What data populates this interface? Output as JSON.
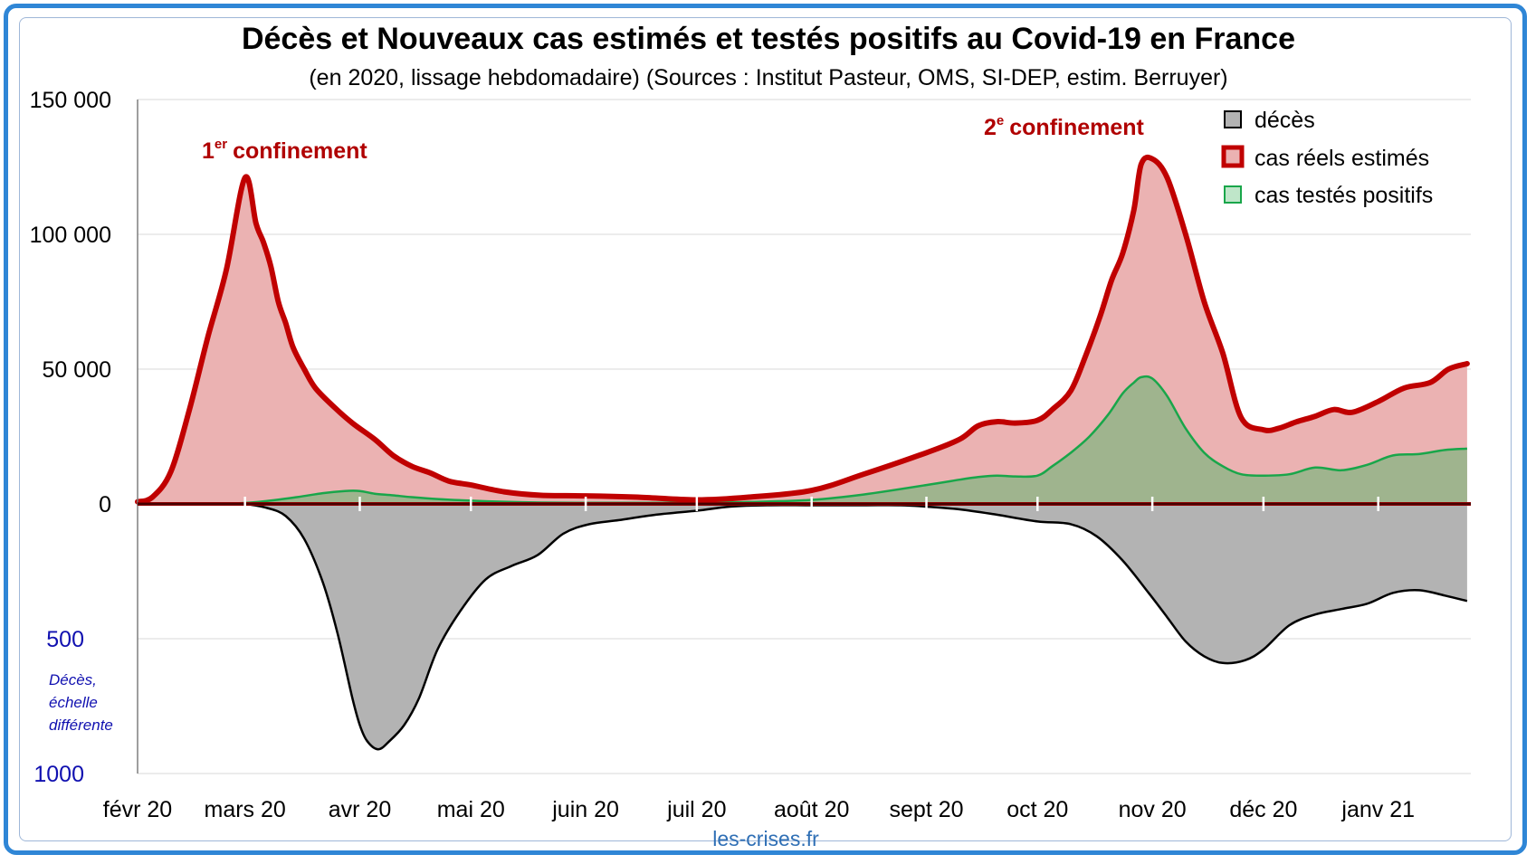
{
  "chart_data": {
    "type": "area",
    "title": "Décès et Nouveaux cas estimés et testés positifs au Covid-19 en France",
    "subtitle": "(en 2020, lissage hebdomadaire) (Sources : Institut Pasteur, OMS, SI-DEP, estim. Berruyer)",
    "x_tick_labels": [
      "févr 20",
      "mars 20",
      "avr 20",
      "mai 20",
      "juin 20",
      "juil 20",
      "août 20",
      "sept 20",
      "oct 20",
      "nov 20",
      "déc 20",
      "janv 21"
    ],
    "y_tick_labels_top": [
      "150 000",
      "100 000",
      "50 000",
      "0"
    ],
    "y_tick_labels_bottom": [
      "500",
      "1000"
    ],
    "y_note": [
      "Décès,",
      "échelle",
      "différente"
    ],
    "ylim_cases": [
      0,
      150000
    ],
    "ylim_deaths": [
      0,
      1000
    ],
    "gridlines": true,
    "legend_position": "top-right",
    "annotations": [
      {
        "text": "confinement",
        "superscript": "er",
        "prefix": "1",
        "x": "2020-03-17"
      },
      {
        "text": "confinement",
        "superscript": "e",
        "prefix": "2",
        "x": "2020-10-29"
      }
    ],
    "source_label": "les-crises.fr",
    "colors": {
      "deaths_fill": "#b3b3b3",
      "deaths_line": "#000000",
      "real_fill": "#ebb2b2",
      "real_line": "#c00000",
      "tested_fill": "#9fb48e",
      "tested_line": "#19a64a",
      "grid": "#d9d9d9",
      "zero_line": "#8b0000"
    },
    "series": [
      {
        "name": "décès",
        "legend_color": "#b3b3b3",
        "x": [
          "2020-02-01",
          "2020-02-15",
          "2020-02-28",
          "2020-03-01",
          "2020-03-07",
          "2020-03-12",
          "2020-03-17",
          "2020-03-22",
          "2020-03-26",
          "2020-03-30",
          "2020-04-01",
          "2020-04-03",
          "2020-04-06",
          "2020-04-09",
          "2020-04-13",
          "2020-04-17",
          "2020-04-22",
          "2020-04-28",
          "2020-05-05",
          "2020-05-12",
          "2020-05-19",
          "2020-05-26",
          "2020-06-02",
          "2020-06-10",
          "2020-06-20",
          "2020-07-01",
          "2020-07-10",
          "2020-07-20",
          "2020-08-01",
          "2020-08-15",
          "2020-08-25",
          "2020-09-01",
          "2020-09-10",
          "2020-09-20",
          "2020-10-01",
          "2020-10-10",
          "2020-10-17",
          "2020-10-24",
          "2020-10-31",
          "2020-11-05",
          "2020-11-10",
          "2020-11-15",
          "2020-11-20",
          "2020-11-26",
          "2020-12-01",
          "2020-12-08",
          "2020-12-15",
          "2020-12-22",
          "2020-12-29",
          "2021-01-05",
          "2021-01-12",
          "2021-01-19",
          "2021-01-25"
        ],
        "values": [
          0,
          0,
          0,
          0,
          15,
          45,
          130,
          290,
          480,
          720,
          820,
          880,
          910,
          880,
          820,
          720,
          540,
          400,
          280,
          230,
          190,
          110,
          75,
          60,
          40,
          25,
          10,
          5,
          5,
          5,
          5,
          10,
          20,
          40,
          65,
          75,
          120,
          210,
          330,
          420,
          510,
          565,
          590,
          580,
          540,
          450,
          410,
          390,
          370,
          330,
          320,
          340,
          360
        ]
      },
      {
        "name": "cas réels estimés",
        "legend_color": "#c00000",
        "x": [
          "2020-02-01",
          "2020-02-05",
          "2020-02-10",
          "2020-02-15",
          "2020-02-20",
          "2020-02-25",
          "2020-03-01",
          "2020-03-04",
          "2020-03-06",
          "2020-03-08",
          "2020-03-10",
          "2020-03-12",
          "2020-03-14",
          "2020-03-17",
          "2020-03-20",
          "2020-03-25",
          "2020-03-30",
          "2020-04-05",
          "2020-04-10",
          "2020-04-15",
          "2020-04-20",
          "2020-04-25",
          "2020-05-01",
          "2020-05-10",
          "2020-05-20",
          "2020-06-01",
          "2020-06-15",
          "2020-07-01",
          "2020-07-15",
          "2020-08-01",
          "2020-08-15",
          "2020-09-01",
          "2020-09-10",
          "2020-09-15",
          "2020-09-20",
          "2020-09-25",
          "2020-10-01",
          "2020-10-05",
          "2020-10-10",
          "2020-10-14",
          "2020-10-18",
          "2020-10-21",
          "2020-10-24",
          "2020-10-27",
          "2020-10-29",
          "2020-11-01",
          "2020-11-05",
          "2020-11-10",
          "2020-11-15",
          "2020-11-20",
          "2020-11-25",
          "2020-12-01",
          "2020-12-05",
          "2020-12-10",
          "2020-12-15",
          "2020-12-20",
          "2020-12-25",
          "2021-01-01",
          "2021-01-08",
          "2021-01-15",
          "2021-01-20",
          "2021-01-25"
        ],
        "values": [
          800,
          2500,
          12000,
          35000,
          62000,
          87000,
          121000,
          104000,
          97000,
          88000,
          75000,
          67000,
          58000,
          50000,
          43000,
          36000,
          30000,
          24000,
          18000,
          14000,
          11500,
          8500,
          7000,
          4500,
          3200,
          3000,
          2500,
          1500,
          2500,
          5000,
          11000,
          19000,
          24000,
          29000,
          30500,
          30000,
          31000,
          35000,
          42000,
          55000,
          70000,
          83000,
          93000,
          109000,
          126000,
          128000,
          121000,
          100000,
          75000,
          56000,
          32000,
          27500,
          28000,
          30500,
          32500,
          35000,
          34000,
          38000,
          43000,
          45000,
          50000,
          52000
        ]
      },
      {
        "name": "cas testés positifs",
        "legend_color": "#19a64a",
        "x": [
          "2020-02-01",
          "2020-02-25",
          "2020-03-05",
          "2020-03-15",
          "2020-03-22",
          "2020-03-28",
          "2020-04-01",
          "2020-04-05",
          "2020-04-10",
          "2020-04-15",
          "2020-04-22",
          "2020-05-01",
          "2020-05-10",
          "2020-05-20",
          "2020-06-01",
          "2020-06-15",
          "2020-07-01",
          "2020-07-15",
          "2020-08-01",
          "2020-08-15",
          "2020-09-01",
          "2020-09-10",
          "2020-09-15",
          "2020-09-20",
          "2020-09-25",
          "2020-10-01",
          "2020-10-05",
          "2020-10-10",
          "2020-10-15",
          "2020-10-20",
          "2020-10-24",
          "2020-10-27",
          "2020-10-29",
          "2020-11-01",
          "2020-11-05",
          "2020-11-10",
          "2020-11-15",
          "2020-11-20",
          "2020-11-25",
          "2020-12-01",
          "2020-12-08",
          "2020-12-15",
          "2020-12-22",
          "2020-12-29",
          "2021-01-05",
          "2021-01-12",
          "2021-01-19",
          "2021-01-25"
        ],
        "values": [
          0,
          100,
          800,
          2500,
          4000,
          4800,
          4800,
          3800,
          3200,
          2500,
          1800,
          1200,
          800,
          500,
          400,
          400,
          500,
          700,
          1500,
          3500,
          7000,
          9000,
          10000,
          10500,
          10200,
          10500,
          14000,
          19000,
          25000,
          33000,
          41000,
          45000,
          47000,
          46500,
          40000,
          28000,
          19000,
          14000,
          11000,
          10500,
          11000,
          13500,
          12500,
          14500,
          18000,
          18500,
          20000,
          20500
        ]
      }
    ]
  }
}
